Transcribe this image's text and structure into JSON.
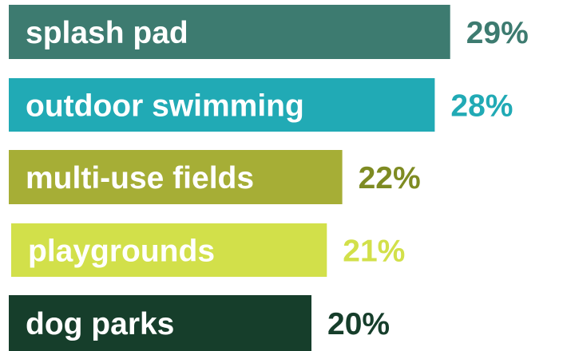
{
  "chart_data": {
    "type": "bar",
    "orientation": "horizontal",
    "categories": [
      "splash pad",
      "outdoor swimming",
      "multi-use fields",
      "playgrounds",
      "dog parks"
    ],
    "values": [
      29,
      28,
      22,
      21,
      20
    ],
    "value_labels": [
      "29%",
      "28%",
      "22%",
      "21%",
      "20%"
    ],
    "unit": "%",
    "bar_colors": [
      "#3d7b70",
      "#21aab5",
      "#a6ae36",
      "#d2e04a",
      "#163e2b"
    ],
    "value_label_colors": [
      "#3d7b70",
      "#21aab5",
      "#7e8b22",
      "#d2e04a",
      "#163e2b"
    ],
    "category_label_color": "#ffffff",
    "grid": false,
    "legend": "none"
  }
}
